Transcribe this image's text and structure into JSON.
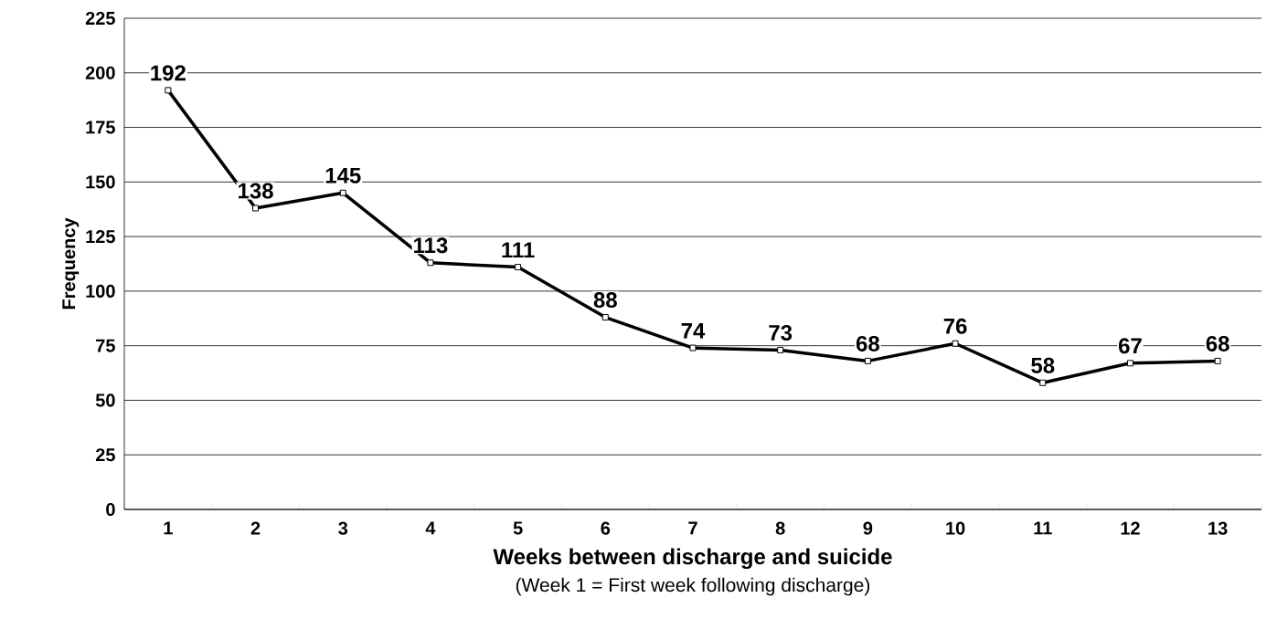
{
  "chart_data": {
    "type": "line",
    "xlabel": "Weeks between discharge and suicide",
    "ylabel": "Frequency",
    "annotations": [
      "(Week 1 =  First week following discharge)"
    ],
    "categories": [
      "1",
      "2",
      "3",
      "4",
      "5",
      "6",
      "7",
      "8",
      "9",
      "10",
      "11",
      "12",
      "13"
    ],
    "series": [
      {
        "color": "#000000",
        "values": [
          192,
          138,
          145,
          113,
          111,
          88,
          74,
          73,
          68,
          76,
          58,
          67,
          68
        ]
      }
    ],
    "ylim": [
      0,
      225
    ],
    "yticks": [
      0,
      25,
      50,
      75,
      100,
      125,
      150,
      175,
      200,
      225
    ],
    "grid": "y",
    "data_labels": true,
    "marker": "square",
    "line_style": "solid"
  }
}
